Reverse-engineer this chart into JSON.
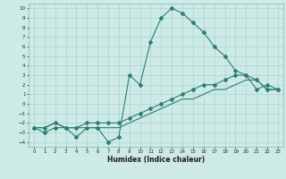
{
  "xlabel": "Humidex (Indice chaleur)",
  "bg_color": "#ceeae7",
  "grid_color": "#a8d5d0",
  "line_color": "#2e7d74",
  "xlim": [
    -0.5,
    23.5
  ],
  "ylim": [
    -4.5,
    10.5
  ],
  "xticks": [
    0,
    1,
    2,
    3,
    4,
    5,
    6,
    7,
    8,
    9,
    10,
    11,
    12,
    13,
    14,
    15,
    16,
    17,
    18,
    19,
    20,
    21,
    22,
    23
  ],
  "yticks": [
    10,
    9,
    8,
    7,
    6,
    5,
    4,
    3,
    2,
    1,
    0,
    -1,
    -2,
    -3,
    -4
  ],
  "series1_x": [
    0,
    1,
    2,
    3,
    4,
    5,
    6,
    7,
    8,
    9,
    10,
    11,
    12,
    13,
    14,
    15,
    16,
    17,
    18,
    19,
    20,
    21,
    22,
    23
  ],
  "series1_y": [
    -2.5,
    -3.0,
    -2.5,
    -2.5,
    -3.5,
    -2.5,
    -2.5,
    -4.0,
    -3.5,
    3.0,
    2.0,
    6.5,
    9.0,
    10.0,
    9.5,
    8.5,
    7.5,
    6.0,
    5.0,
    3.5,
    3.0,
    2.5,
    1.5,
    1.5
  ],
  "series2_x": [
    0,
    1,
    2,
    3,
    4,
    5,
    6,
    7,
    8,
    9,
    10,
    11,
    12,
    13,
    14,
    15,
    16,
    17,
    18,
    19,
    20,
    21,
    22,
    23
  ],
  "series2_y": [
    -2.5,
    -2.5,
    -2.0,
    -2.5,
    -2.5,
    -2.0,
    -2.0,
    -2.0,
    -2.0,
    -1.5,
    -1.0,
    -0.5,
    0.0,
    0.5,
    1.0,
    1.5,
    2.0,
    2.0,
    2.5,
    3.0,
    3.0,
    1.5,
    2.0,
    1.5
  ],
  "series3_x": [
    0,
    1,
    2,
    3,
    4,
    5,
    6,
    7,
    8,
    9,
    10,
    11,
    12,
    13,
    14,
    15,
    16,
    17,
    18,
    19,
    20,
    21,
    22,
    23
  ],
  "series3_y": [
    -2.5,
    -2.5,
    -2.0,
    -2.5,
    -2.5,
    -2.5,
    -2.5,
    -2.5,
    -2.5,
    -2.0,
    -1.5,
    -1.0,
    -0.5,
    0.0,
    0.5,
    0.5,
    1.0,
    1.5,
    1.5,
    2.0,
    2.5,
    2.5,
    1.5,
    1.5
  ]
}
